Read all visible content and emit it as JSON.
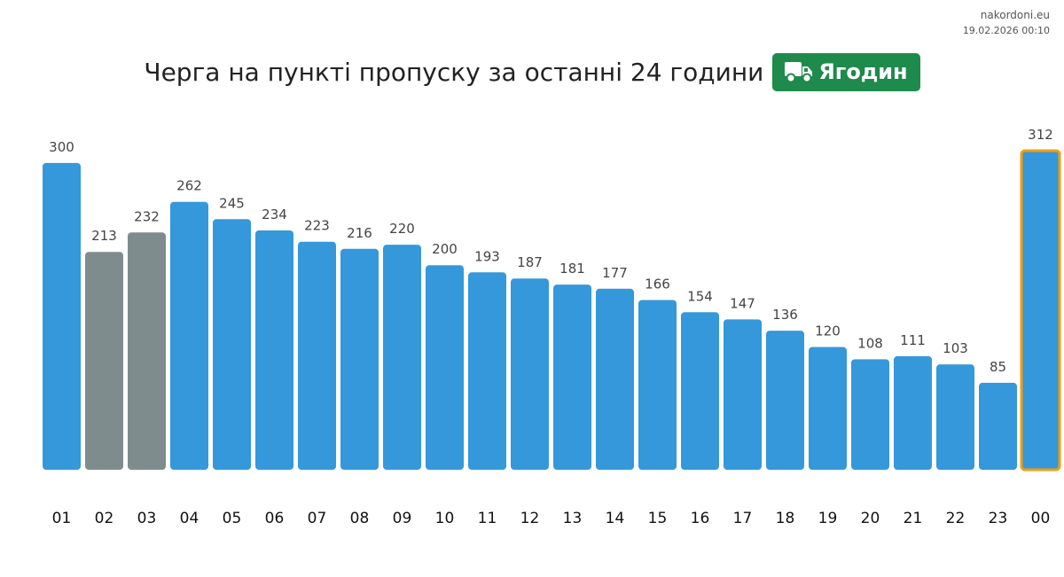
{
  "site": {
    "name": "nakordoni.eu",
    "timestamp": "19.02.2026 00:10"
  },
  "header": {
    "title": "Черга на пункті пропуску за останні 24 години",
    "badge_label": "Ягодин",
    "badge_icon": "truck-icon"
  },
  "colors": {
    "bar": "#3498db",
    "past_bar": "#7f8c8d",
    "current_outline": "#f39c12",
    "badge": "#1e8a4c",
    "value_text": "#444444",
    "tick_text": "#111111"
  },
  "chart_data": {
    "type": "bar",
    "title": "Черга на пункті пропуску за останні 24 години",
    "xlabel": "",
    "ylabel": "",
    "ylim": [
      0,
      312
    ],
    "grid": false,
    "categories": [
      "01",
      "02",
      "03",
      "04",
      "05",
      "06",
      "07",
      "08",
      "09",
      "10",
      "11",
      "12",
      "13",
      "14",
      "15",
      "16",
      "17",
      "18",
      "19",
      "20",
      "21",
      "22",
      "23",
      "00"
    ],
    "values": [
      300,
      213,
      232,
      262,
      245,
      234,
      223,
      216,
      220,
      200,
      193,
      187,
      181,
      177,
      166,
      154,
      147,
      136,
      120,
      108,
      111,
      103,
      85,
      312
    ],
    "gray_categories": [
      "02",
      "03"
    ],
    "highlighted_category": "00"
  }
}
